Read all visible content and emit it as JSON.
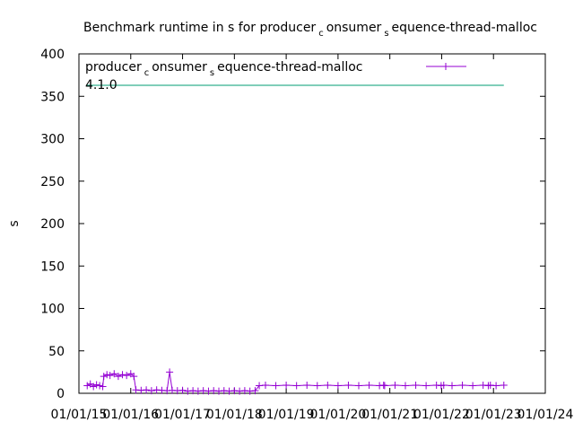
{
  "chart_data": {
    "type": "line",
    "title": [
      "Benchmark runtime in s for producer",
      "c",
      "onsumer",
      "s",
      "equence-thread-malloc"
    ],
    "y_label": "s",
    "xlim": [
      2015,
      2024
    ],
    "xticks": [
      {
        "value": 2015,
        "label": "01/01/15"
      },
      {
        "value": 2016,
        "label": "01/01/16"
      },
      {
        "value": 2017,
        "label": "01/01/17"
      },
      {
        "value": 2018,
        "label": "01/01/18"
      },
      {
        "value": 2019,
        "label": "01/01/19"
      },
      {
        "value": 2020,
        "label": "01/01/20"
      },
      {
        "value": 2021,
        "label": "01/01/21"
      },
      {
        "value": 2022,
        "label": "01/01/22"
      },
      {
        "value": 2023,
        "label": "01/01/23"
      },
      {
        "value": 2024,
        "label": "01/01/24"
      }
    ],
    "ylim": [
      0,
      400
    ],
    "yticks": [
      0,
      50,
      100,
      150,
      200,
      250,
      300,
      350,
      400
    ],
    "legend": "top-right",
    "series": [
      {
        "name": [
          "producer",
          "c",
          "onsumer",
          "s",
          "equence-thread-malloc"
        ],
        "color": "#9400d3",
        "marker": "+",
        "x": [
          2015.16,
          2015.22,
          2015.28,
          2015.34,
          2015.4,
          2015.46,
          2015.48,
          2015.54,
          2015.6,
          2015.68,
          2015.76,
          2015.84,
          2015.92,
          2016.0,
          2016.06,
          2016.1,
          2016.2,
          2016.3,
          2016.4,
          2016.5,
          2016.6,
          2016.7,
          2016.75,
          2016.8,
          2016.9,
          2017.0,
          2017.1,
          2017.2,
          2017.3,
          2017.4,
          2017.5,
          2017.6,
          2017.7,
          2017.8,
          2017.9,
          2018.0,
          2018.1,
          2018.2,
          2018.3,
          2018.4,
          2018.48,
          2018.6,
          2018.8,
          2019.0,
          2019.2,
          2019.4,
          2019.6,
          2019.8,
          2020.0,
          2020.2,
          2020.4,
          2020.6,
          2020.8,
          2020.88,
          2020.89,
          2020.9,
          2021.1,
          2021.3,
          2021.5,
          2021.7,
          2021.9,
          2021.99,
          2022.01,
          2022.04,
          2022.2,
          2022.4,
          2022.6,
          2022.8,
          2022.9,
          2022.92,
          2022.94,
          2023.05,
          2023.2
        ],
        "values": [
          9,
          11,
          8,
          10,
          9,
          8,
          20,
          22,
          21,
          23,
          20,
          22,
          21,
          23,
          20,
          4,
          3.5,
          4,
          3,
          4,
          3.5,
          3,
          25,
          3.5,
          3,
          3.5,
          2.5,
          3,
          2.5,
          3,
          2.5,
          3,
          2.5,
          3,
          2.5,
          3,
          2.5,
          3,
          2.5,
          3,
          9,
          9.5,
          9,
          9.5,
          9,
          9.5,
          9,
          9.5,
          9,
          9.5,
          9,
          9.5,
          9,
          9.5,
          null,
          9,
          9.5,
          9,
          9.5,
          9,
          9.5,
          9,
          null,
          9.5,
          9,
          9.5,
          9,
          9.5,
          9,
          null,
          9.5,
          9,
          9.5
        ]
      },
      {
        "name": [
          "4.1.0"
        ],
        "color": "#009e73",
        "x": [
          2015.15,
          2023.2
        ],
        "values": [
          363,
          363
        ]
      }
    ]
  }
}
